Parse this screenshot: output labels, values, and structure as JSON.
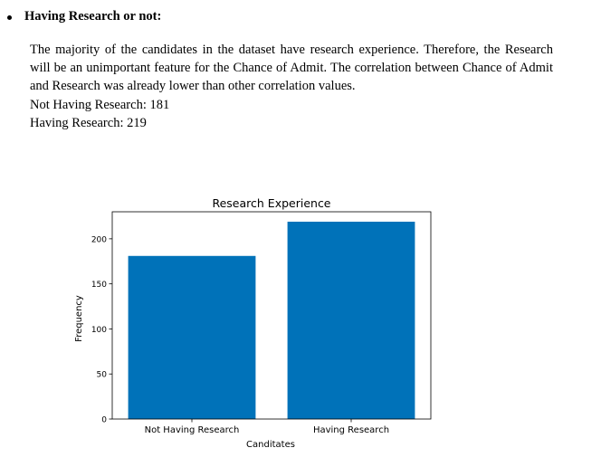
{
  "heading": "Having Research or not:",
  "paragraph": "The majority of the candidates in the dataset have research experience. Therefore, the Research will be an unimportant feature for the Chance of Admit. The correlation between Chance of Admit and Research was already lower than other correlation values.",
  "stats": [
    "Not Having Research: 181",
    "Having Research: 219"
  ],
  "colors": {
    "bar": "#0072b9"
  },
  "chart_data": {
    "type": "bar",
    "title": "Research Experience",
    "xlabel": "Canditates",
    "ylabel": "Frequency",
    "categories": [
      "Not Having Research",
      "Having Research"
    ],
    "values": [
      181,
      219
    ],
    "ylim": [
      0,
      230
    ],
    "yticks": [
      0,
      50,
      100,
      150,
      200
    ],
    "grid": false,
    "legend": "none"
  }
}
